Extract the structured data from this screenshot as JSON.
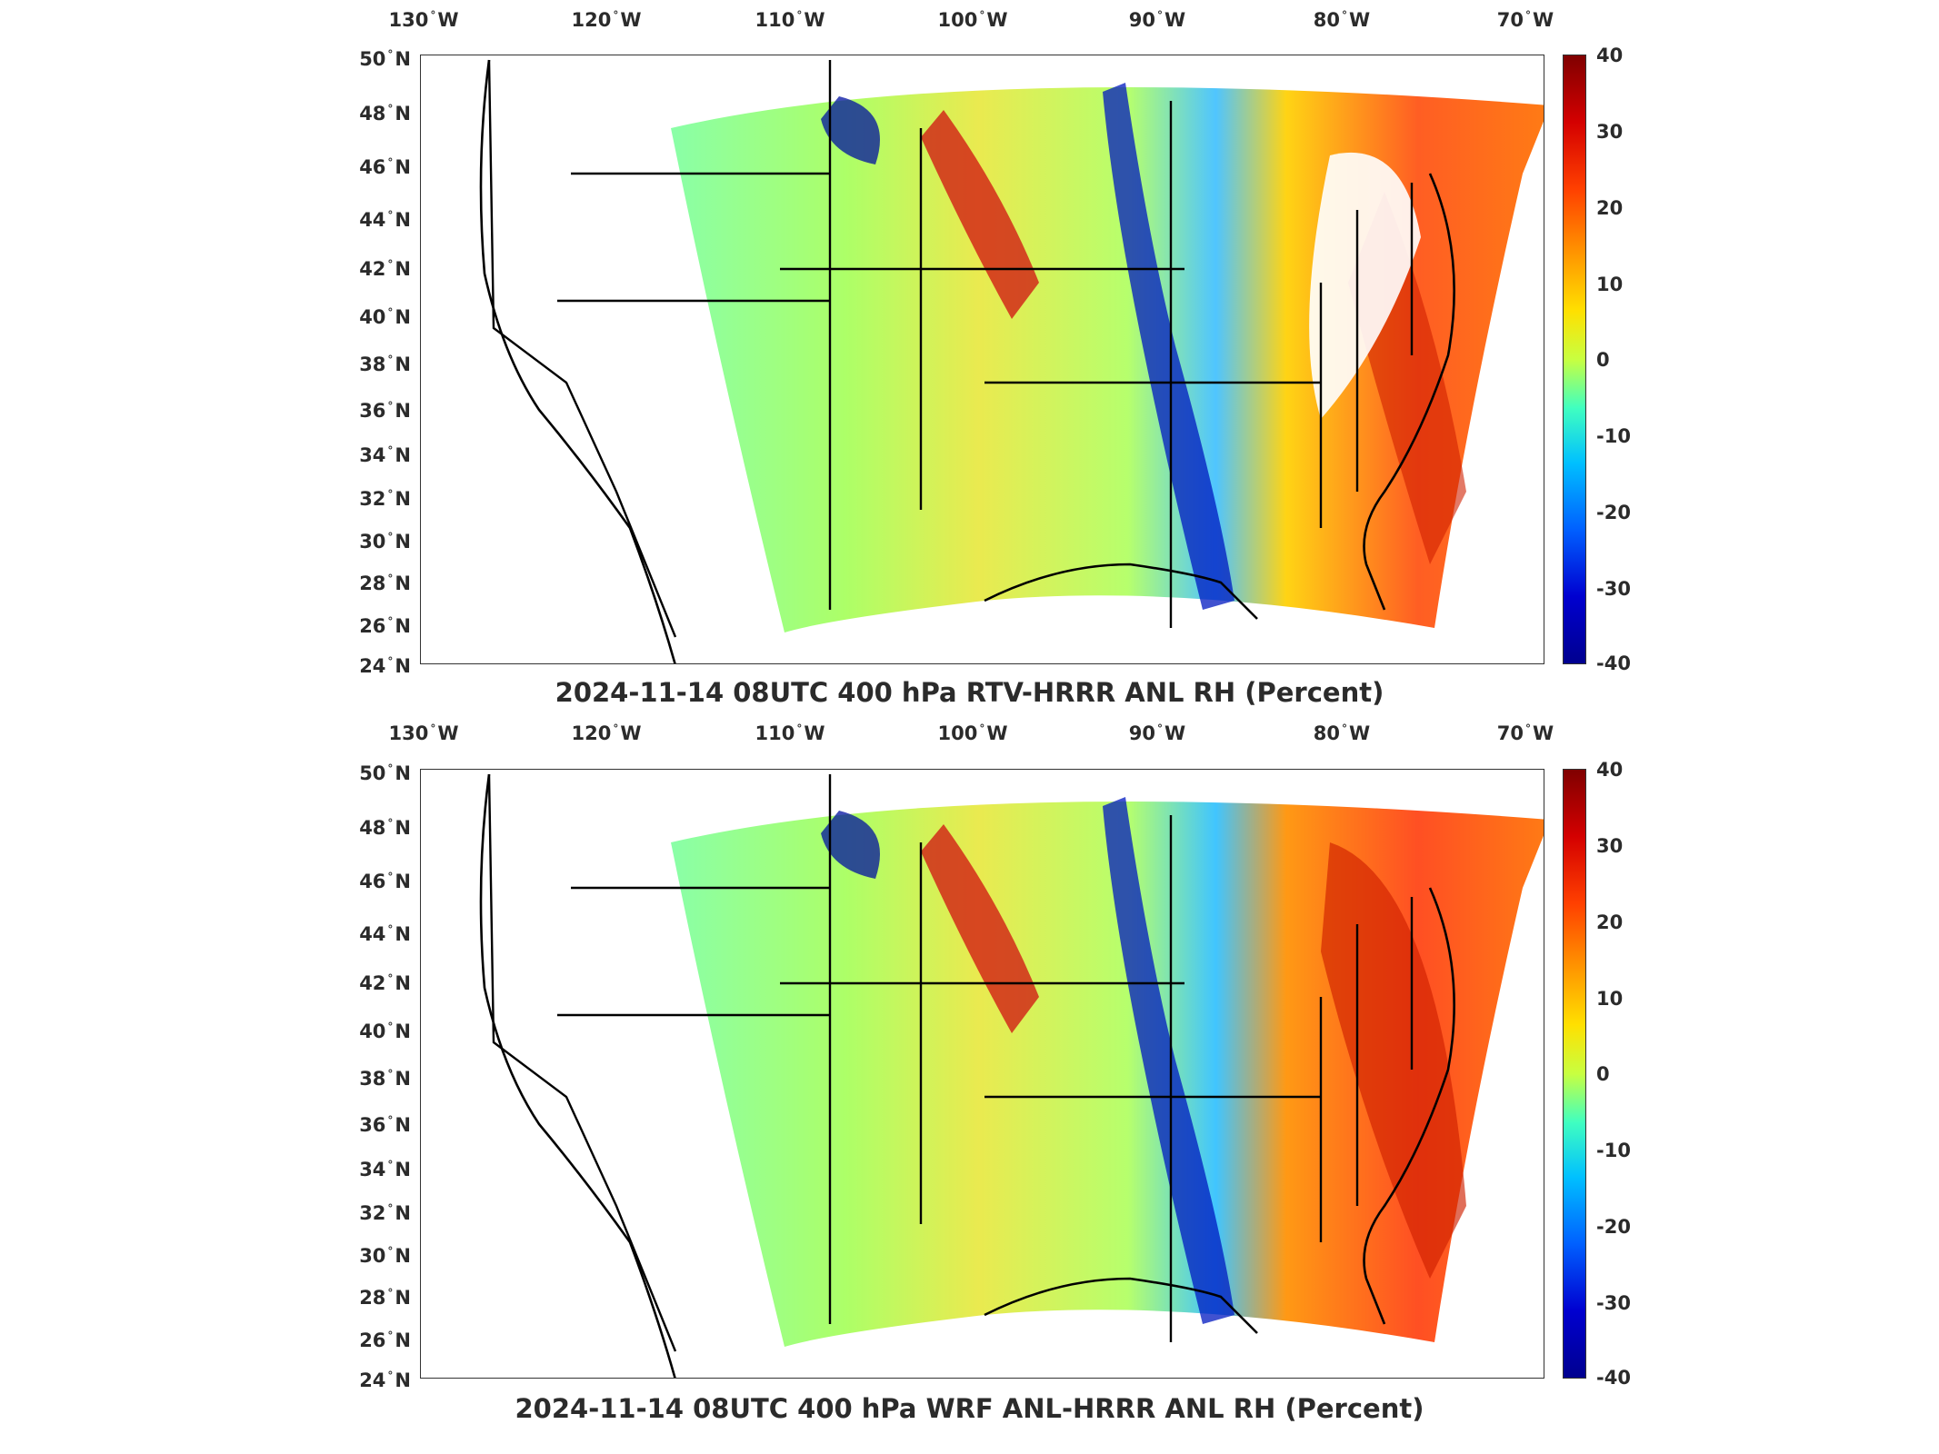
{
  "panels": [
    {
      "id": "top",
      "title": "2024-11-14 08UTC 400 hPa RTV-HRRR ANL RH (Percent)",
      "lon_labels": [
        "130",
        "120",
        "110",
        "100",
        "90",
        "80",
        "70"
      ],
      "lon_suffix": "W",
      "lat_labels": [
        "50",
        "48",
        "46",
        "44",
        "42",
        "40",
        "38",
        "36",
        "34",
        "32",
        "30",
        "28",
        "26",
        "24"
      ],
      "lat_suffix": "N",
      "colorbar": {
        "ticks": [
          "40",
          "30",
          "20",
          "10",
          "0",
          "-10",
          "-20",
          "-30",
          "-40"
        ]
      }
    },
    {
      "id": "bottom",
      "title": "2024-11-14 08UTC 400 hPa WRF ANL-HRRR ANL RH (Percent)",
      "lon_labels": [
        "130",
        "120",
        "110",
        "100",
        "90",
        "80",
        "70"
      ],
      "lon_suffix": "W",
      "lat_labels": [
        "50",
        "48",
        "46",
        "44",
        "42",
        "40",
        "38",
        "36",
        "34",
        "32",
        "30",
        "28",
        "26",
        "24"
      ],
      "lat_suffix": "N",
      "colorbar": {
        "ticks": [
          "40",
          "30",
          "20",
          "10",
          "0",
          "-10",
          "-20",
          "-30",
          "-40"
        ]
      }
    }
  ],
  "map_data": {
    "projection": "lat-lon",
    "lon_range": [
      -131,
      -68
    ],
    "lat_range": [
      24,
      50
    ],
    "field": "400 hPa relative humidity difference",
    "units": "Percent",
    "colorscale": {
      "min": -40,
      "max": 40,
      "name": "jet"
    },
    "colors": {
      "high": "#8b0000",
      "mid": "#bfff3f",
      "low": "#00008b",
      "outline": "#000000"
    }
  }
}
